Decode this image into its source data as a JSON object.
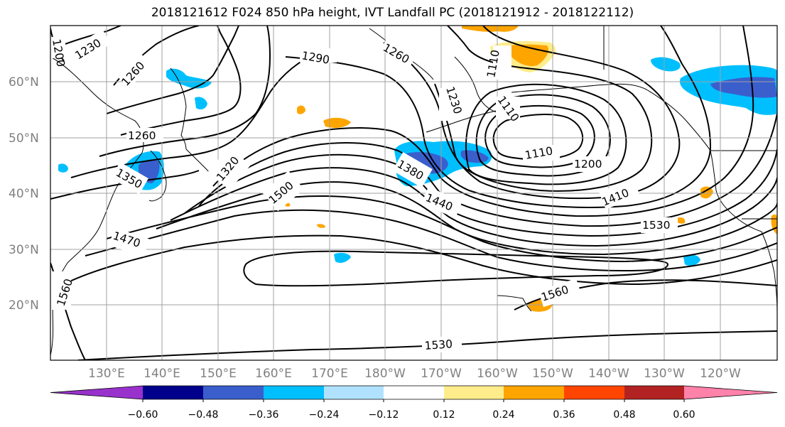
{
  "title": "2018121612 F024 850 hPa height, IVT Landfall PC (2018121912 - 2018122112)",
  "lat_labels": [
    "60°N",
    "50°N",
    "40°N",
    "30°N",
    "20°N"
  ],
  "lon_labels": [
    "130°E",
    "140°E",
    "150°E",
    "160°E",
    "170°E",
    "180°W",
    "170°W",
    "160°W",
    "150°W",
    "140°W",
    "130°W",
    "120°W"
  ],
  "contour_labels": [
    "1200",
    "1230",
    "1260",
    "1290",
    "1260",
    "1260",
    "1230",
    "1110",
    "1110",
    "1110",
    "1200",
    "1320",
    "1380",
    "1350",
    "1500",
    "1440",
    "1410",
    "1530",
    "1470",
    "1560",
    "1560",
    "1530"
  ],
  "colorbar": {
    "ticks": [
      "−0.60",
      "−0.48",
      "−0.36",
      "−0.24",
      "−0.12",
      "0.12",
      "0.24",
      "0.36",
      "0.48",
      "0.60"
    ],
    "colors": [
      "#9932cc",
      "#00008b",
      "#3a5fcd",
      "#00bfff",
      "#b0e2ff",
      "#ffffff",
      "#ffec8b",
      "#ffa500",
      "#ff4500",
      "#b22222",
      "#ff82ab"
    ]
  },
  "colors": {
    "neg_strong": "#3a5fcd",
    "neg_mid": "#00bfff",
    "neg_light": "#b0e2ff",
    "pos_light": "#ffec8b",
    "pos_mid": "#ffa500",
    "grid": "#a0a0a0"
  }
}
